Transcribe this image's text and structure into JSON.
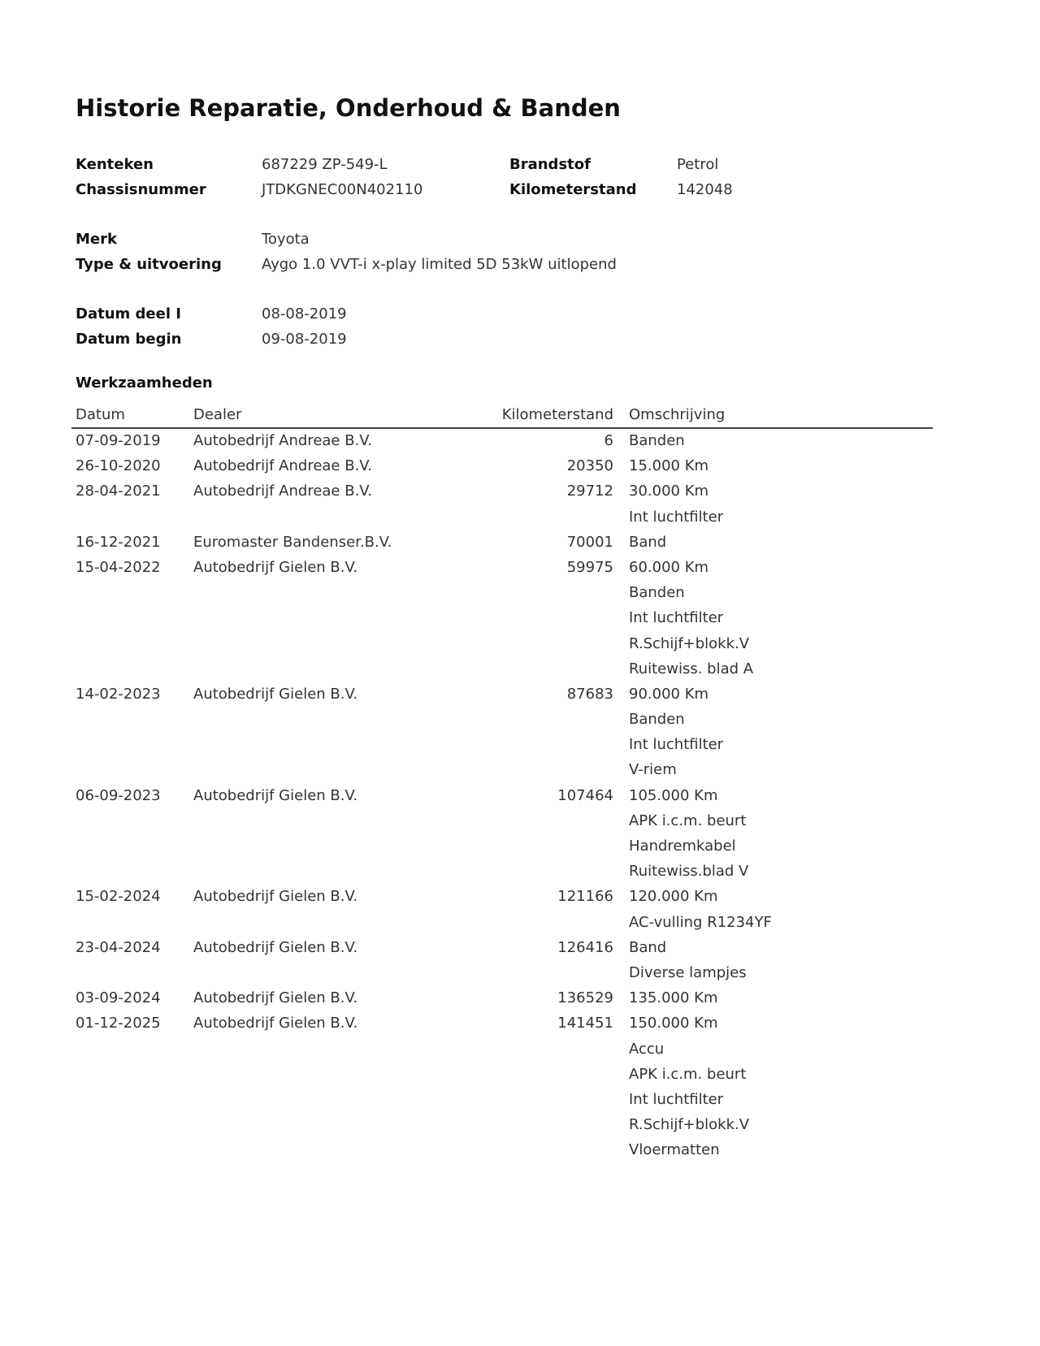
{
  "title": "Historie Reparatie, Onderhoud & Banden",
  "vehicle": {
    "kenteken_label": "Kenteken",
    "kenteken": "687229 ZP-549-L",
    "chassis_label": "Chassisnummer",
    "chassis": "JTDKGNEC00N402110",
    "brandstof_label": "Brandstof",
    "brandstof": "Petrol",
    "km_label": "Kilometerstand",
    "km": "142048",
    "merk_label": "Merk",
    "merk": "Toyota",
    "type_label": "Type & uitvoering",
    "type": "Aygo 1.0 VVT-i x-play limited 5D 53kW uitlopend",
    "datum_deel1_label": "Datum deel I",
    "datum_deel1": "08-08-2019",
    "datum_begin_label": "Datum begin",
    "datum_begin": "09-08-2019"
  },
  "work": {
    "heading": "Werkzaamheden",
    "columns": [
      "Datum",
      "Dealer",
      "Kilometerstand",
      "Omschrijving"
    ],
    "entries": [
      {
        "date": "07-09-2019",
        "dealer": "Autobedrijf Andreae B.V.",
        "km": "6",
        "items": [
          "Banden"
        ]
      },
      {
        "date": "26-10-2020",
        "dealer": "Autobedrijf Andreae B.V.",
        "km": "20350",
        "items": [
          "15.000 Km"
        ]
      },
      {
        "date": "28-04-2021",
        "dealer": "Autobedrijf Andreae B.V.",
        "km": "29712",
        "items": [
          "30.000 Km",
          "Int luchtfilter"
        ]
      },
      {
        "date": "16-12-2021",
        "dealer": "Euromaster Bandenser.B.V.",
        "km": "70001",
        "items": [
          "Band"
        ]
      },
      {
        "date": "15-04-2022",
        "dealer": "Autobedrijf Gielen B.V.",
        "km": "59975",
        "items": [
          "60.000 Km",
          "Banden",
          "Int luchtfilter",
          "R.Schijf+blokk.V",
          "Ruitewiss. blad A"
        ]
      },
      {
        "date": "14-02-2023",
        "dealer": "Autobedrijf Gielen B.V.",
        "km": "87683",
        "items": [
          "90.000 Km",
          "Banden",
          "Int luchtfilter",
          "V-riem"
        ]
      },
      {
        "date": "06-09-2023",
        "dealer": "Autobedrijf Gielen B.V.",
        "km": "107464",
        "items": [
          "105.000 Km",
          "APK i.c.m. beurt",
          "Handremkabel",
          "Ruitewiss.blad V"
        ]
      },
      {
        "date": "15-02-2024",
        "dealer": "Autobedrijf Gielen B.V.",
        "km": "121166",
        "items": [
          "120.000 Km",
          "AC-vulling R1234YF"
        ]
      },
      {
        "date": "23-04-2024",
        "dealer": "Autobedrijf Gielen B.V.",
        "km": "126416",
        "items": [
          "Band",
          "Diverse lampjes"
        ]
      },
      {
        "date": "03-09-2024",
        "dealer": "Autobedrijf Gielen B.V.",
        "km": "136529",
        "items": [
          "135.000 Km"
        ]
      },
      {
        "date": "01-12-2025",
        "dealer": "Autobedrijf Gielen B.V.",
        "km": "141451",
        "items": [
          "150.000 Km",
          "Accu",
          "APK i.c.m. beurt",
          "Int luchtfilter",
          "R.Schijf+blokk.V",
          "Vloermatten"
        ]
      }
    ]
  }
}
